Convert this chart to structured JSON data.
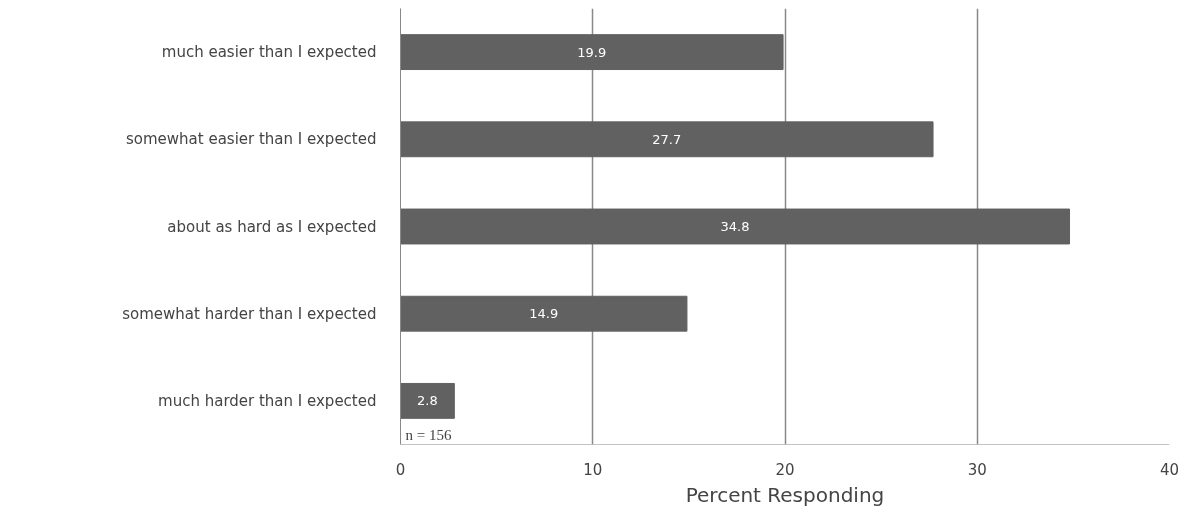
{
  "chart_data": {
    "type": "bar",
    "orientation": "horizontal",
    "categories": [
      "much easier than I expected",
      "somewhat easier than I expected",
      "about as hard as I expected",
      "somewhat harder than I expected",
      "much harder than I expected"
    ],
    "values": [
      19.9,
      27.7,
      34.8,
      14.9,
      2.8
    ],
    "color": "#616161",
    "xlabel": "Percent Responding",
    "xlim": [
      0,
      40
    ],
    "xticks": [
      0,
      10,
      20,
      30,
      40
    ],
    "grid": "x",
    "data_labels": true,
    "annotations": [
      "n = 156"
    ]
  }
}
